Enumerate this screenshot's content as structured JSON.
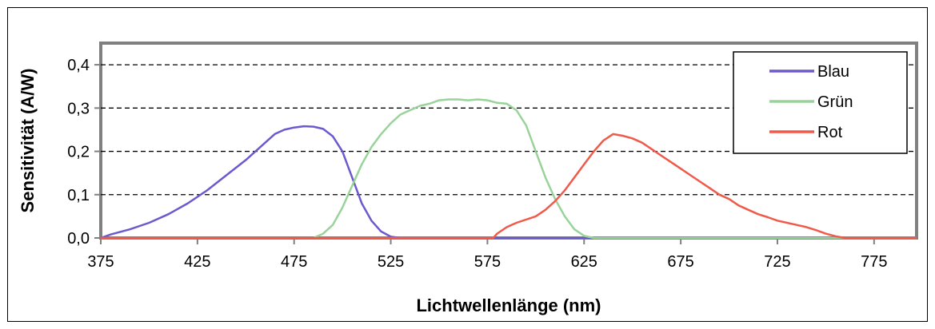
{
  "chart_data": {
    "type": "line",
    "xlabel": "Lichtwellenlänge (nm)",
    "ylabel": "Sensitivität (A/W)",
    "xlim": [
      375,
      797
    ],
    "ylim": [
      0,
      0.45
    ],
    "x_ticks": [
      "375",
      "425",
      "475",
      "525",
      "575",
      "625",
      "675",
      "725",
      "775"
    ],
    "y_ticks": [
      "0,0",
      "0,1",
      "0,2",
      "0,3",
      "0,4"
    ],
    "grid": "horizontal-dashed",
    "legend_position": "top-right",
    "series": [
      {
        "name": "Blau",
        "color": "#6a5acd",
        "points": [
          [
            375,
            0.0
          ],
          [
            380,
            0.008
          ],
          [
            390,
            0.02
          ],
          [
            400,
            0.035
          ],
          [
            410,
            0.055
          ],
          [
            420,
            0.08
          ],
          [
            430,
            0.11
          ],
          [
            440,
            0.145
          ],
          [
            450,
            0.18
          ],
          [
            455,
            0.2
          ],
          [
            460,
            0.22
          ],
          [
            465,
            0.24
          ],
          [
            470,
            0.25
          ],
          [
            475,
            0.255
          ],
          [
            480,
            0.258
          ],
          [
            485,
            0.257
          ],
          [
            490,
            0.252
          ],
          [
            495,
            0.235
          ],
          [
            500,
            0.2
          ],
          [
            505,
            0.14
          ],
          [
            510,
            0.08
          ],
          [
            515,
            0.04
          ],
          [
            520,
            0.015
          ],
          [
            525,
            0.003
          ],
          [
            530,
            0.0
          ],
          [
            797,
            0.0
          ]
        ]
      },
      {
        "name": "Grün",
        "color": "#99d39a",
        "points": [
          [
            485,
            0.0
          ],
          [
            490,
            0.01
          ],
          [
            495,
            0.03
          ],
          [
            500,
            0.07
          ],
          [
            505,
            0.12
          ],
          [
            510,
            0.17
          ],
          [
            515,
            0.21
          ],
          [
            520,
            0.24
          ],
          [
            525,
            0.265
          ],
          [
            530,
            0.285
          ],
          [
            535,
            0.295
          ],
          [
            540,
            0.305
          ],
          [
            545,
            0.31
          ],
          [
            550,
            0.318
          ],
          [
            555,
            0.32
          ],
          [
            560,
            0.32
          ],
          [
            565,
            0.318
          ],
          [
            570,
            0.32
          ],
          [
            575,
            0.318
          ],
          [
            580,
            0.312
          ],
          [
            585,
            0.31
          ],
          [
            590,
            0.295
          ],
          [
            595,
            0.26
          ],
          [
            600,
            0.2
          ],
          [
            605,
            0.14
          ],
          [
            610,
            0.09
          ],
          [
            615,
            0.05
          ],
          [
            620,
            0.02
          ],
          [
            625,
            0.005
          ],
          [
            630,
            0.0
          ],
          [
            797,
            0.0
          ]
        ]
      },
      {
        "name": "Rot",
        "color": "#f05a4a",
        "points": [
          [
            375,
            0.0
          ],
          [
            578,
            0.0
          ],
          [
            580,
            0.01
          ],
          [
            585,
            0.025
          ],
          [
            590,
            0.035
          ],
          [
            600,
            0.05
          ],
          [
            605,
            0.065
          ],
          [
            610,
            0.085
          ],
          [
            615,
            0.11
          ],
          [
            620,
            0.14
          ],
          [
            625,
            0.17
          ],
          [
            630,
            0.2
          ],
          [
            635,
            0.225
          ],
          [
            640,
            0.24
          ],
          [
            645,
            0.236
          ],
          [
            650,
            0.23
          ],
          [
            655,
            0.22
          ],
          [
            660,
            0.205
          ],
          [
            665,
            0.19
          ],
          [
            670,
            0.175
          ],
          [
            675,
            0.16
          ],
          [
            680,
            0.145
          ],
          [
            685,
            0.13
          ],
          [
            690,
            0.115
          ],
          [
            695,
            0.1
          ],
          [
            700,
            0.09
          ],
          [
            705,
            0.075
          ],
          [
            710,
            0.065
          ],
          [
            715,
            0.055
          ],
          [
            720,
            0.048
          ],
          [
            725,
            0.04
          ],
          [
            730,
            0.035
          ],
          [
            735,
            0.03
          ],
          [
            740,
            0.025
          ],
          [
            745,
            0.018
          ],
          [
            750,
            0.01
          ],
          [
            755,
            0.004
          ],
          [
            760,
            0.0
          ],
          [
            797,
            0.0
          ]
        ]
      }
    ]
  }
}
